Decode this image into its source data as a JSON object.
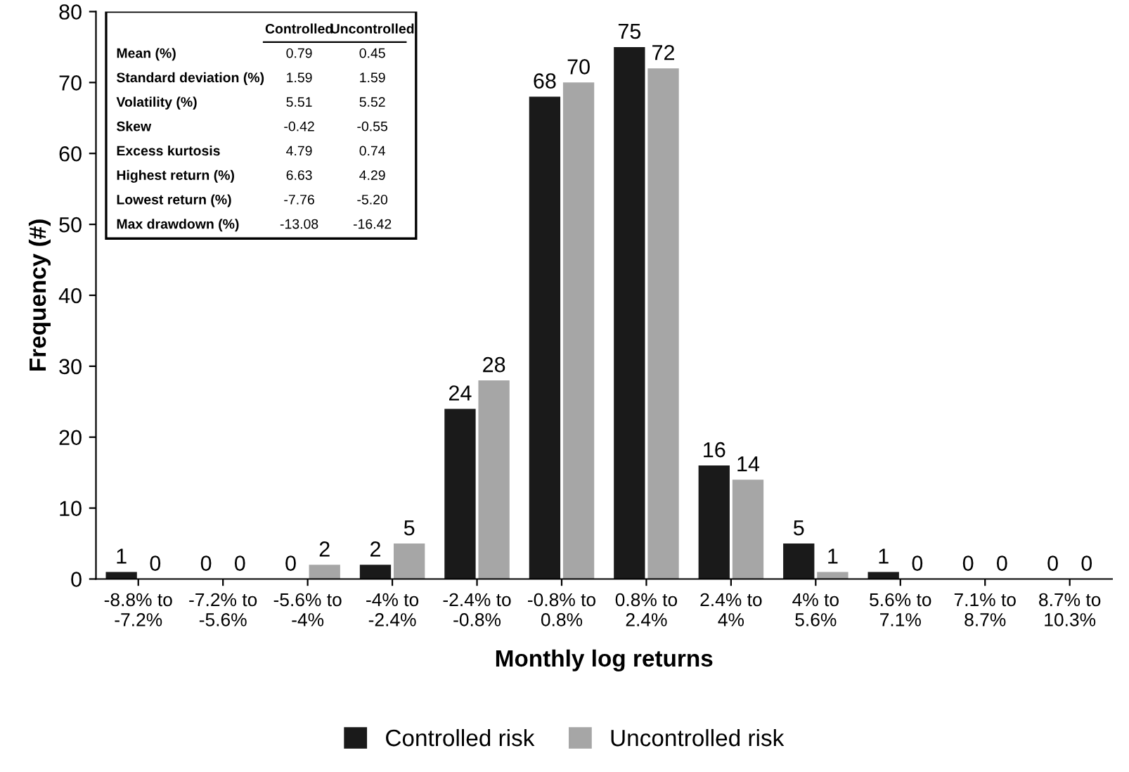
{
  "chart_data": {
    "type": "bar",
    "xlabel": "Monthly log returns",
    "ylabel": "Frequency (#)",
    "categories": [
      "-8.8% to\n-7.2%",
      "-7.2% to\n-5.6%",
      "-5.6% to\n-4%",
      "-4% to\n-2.4%",
      "-2.4% to\n-0.8%",
      "-0.8% to\n0.8%",
      "0.8% to\n2.4%",
      "2.4% to\n4%",
      "4% to\n5.6%",
      "5.6% to\n7.1%",
      "7.1% to\n8.7%",
      "8.7% to\n10.3%"
    ],
    "series": [
      {
        "name": "Controlled risk",
        "color": "#1a1a1a",
        "values": [
          1,
          0,
          0,
          2,
          24,
          68,
          75,
          16,
          5,
          1,
          0,
          0
        ]
      },
      {
        "name": "Uncontrolled risk",
        "color": "#a6a6a6",
        "values": [
          0,
          0,
          2,
          5,
          28,
          70,
          72,
          14,
          1,
          0,
          0,
          0
        ]
      }
    ],
    "ylim": [
      0,
      80
    ],
    "yticks": [
      0,
      10,
      20,
      30,
      40,
      50,
      60,
      70,
      80
    ],
    "grid": false,
    "legend": "bottom",
    "data_labels": true,
    "annotations": [
      "Controlled",
      "Uncontrolled",
      "Mean (%)",
      "0.79",
      "0.45",
      "Standard deviation (%)",
      "1.59",
      "1.59",
      "Volatility (%)",
      "5.51",
      "5.52",
      "Skew",
      "-0.42",
      "-0.55",
      "Excess kurtosis",
      "4.79",
      "0.74",
      "Highest return (%)",
      "6.63",
      "4.29",
      "Lowest return (%)",
      "-7.76",
      "-5.20",
      "Max drawdown (%)",
      "-13.08",
      "-16.42"
    ]
  }
}
